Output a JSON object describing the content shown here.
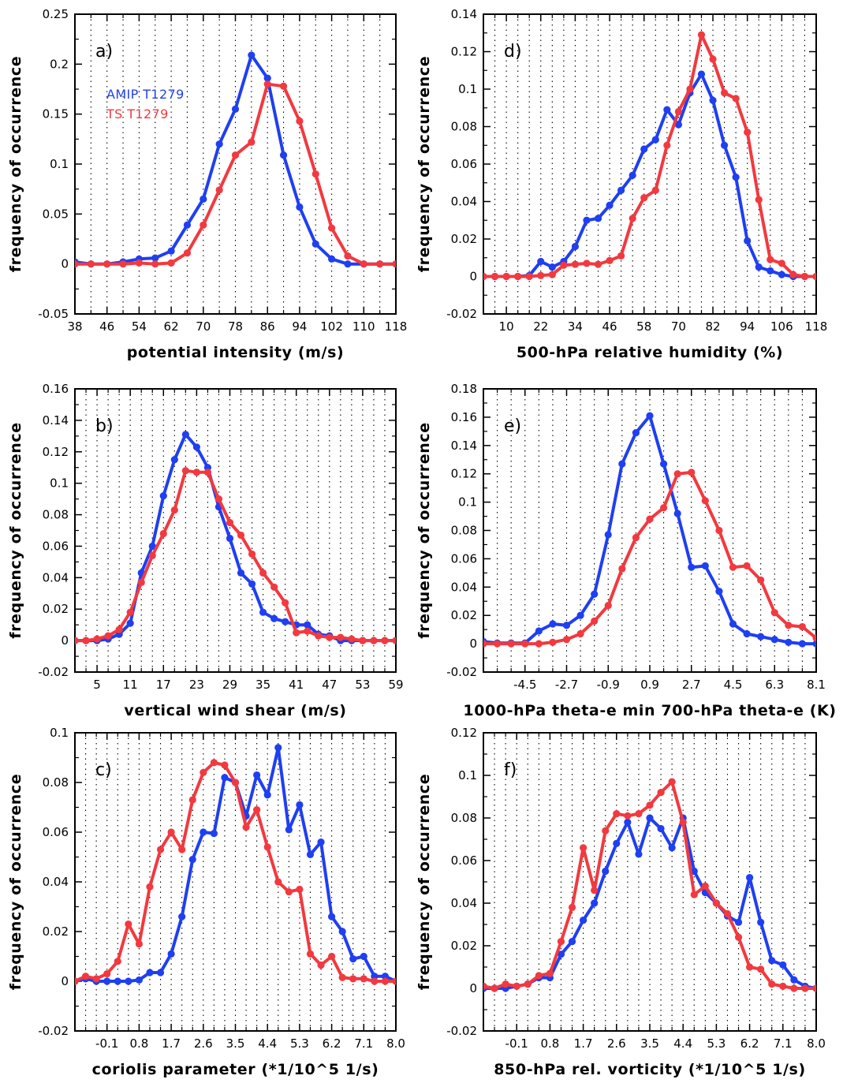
{
  "colors": {
    "AMIP": "#1f3ff2",
    "TS": "#f2393f"
  },
  "legend": [
    {
      "name": "AMIP T1279",
      "color": "#1f3ff2"
    },
    {
      "name": "TS T1279",
      "color": "#f2393f"
    }
  ],
  "chart_data": [
    {
      "panel": "a)",
      "type": "line",
      "xlabel": "potential intensity (m/s)",
      "ylabel": "frequency of occurrence",
      "xlim": [
        38,
        118
      ],
      "ylim": [
        -0.05,
        0.25
      ],
      "xticks": [
        "38",
        "42",
        "46",
        "50",
        "54",
        "58",
        "62",
        "66",
        "70",
        "74",
        "78",
        "82",
        "86",
        "90",
        "94",
        "98",
        "102",
        "106",
        "110",
        "114",
        "118"
      ],
      "xtick_labels": [
        "38",
        "46",
        "54",
        "62",
        "70",
        "78",
        "86",
        "94",
        "102",
        "110",
        "118"
      ],
      "yticks": [
        "-0.05",
        "0",
        "0.05",
        "0.1",
        "0.15",
        "0.2",
        "0.25"
      ],
      "grid": "dotted vertical",
      "legend_position": "top-left",
      "series": [
        {
          "name": "AMIP T1279",
          "x": [
            38,
            42,
            46,
            50,
            54,
            58,
            62,
            66,
            70,
            74,
            78,
            82,
            86,
            90,
            94,
            98,
            102,
            106,
            110,
            114,
            118
          ],
          "y": [
            0.002,
            0.0,
            0.0,
            0.002,
            0.005,
            0.006,
            0.013,
            0.039,
            0.065,
            0.12,
            0.155,
            0.209,
            0.186,
            0.109,
            0.057,
            0.02,
            0.005,
            0.0,
            0.0,
            0.0,
            0.0
          ]
        },
        {
          "name": "TS T1279",
          "x": [
            38,
            42,
            46,
            50,
            54,
            58,
            62,
            66,
            70,
            74,
            78,
            82,
            86,
            90,
            94,
            98,
            102,
            106,
            110,
            114,
            118
          ],
          "y": [
            0.0,
            0.0,
            0.0,
            0.0,
            0.001,
            0.0,
            0.001,
            0.011,
            0.039,
            0.074,
            0.109,
            0.122,
            0.18,
            0.178,
            0.143,
            0.09,
            0.036,
            0.008,
            0.0,
            0.0,
            0.0
          ]
        }
      ]
    },
    {
      "panel": "d)",
      "type": "line",
      "xlabel": "500-hPa relative humidity (%)",
      "ylabel": "frequency of occurrence",
      "xlim": [
        2,
        118
      ],
      "ylim": [
        -0.02,
        0.14
      ],
      "xtick_labels": [
        "10",
        "22",
        "34",
        "46",
        "58",
        "70",
        "82",
        "94",
        "106",
        "118"
      ],
      "xtick_values": [
        10,
        22,
        34,
        46,
        58,
        70,
        82,
        94,
        106,
        118
      ],
      "minor_x": [
        6,
        14,
        18,
        26,
        30,
        38,
        42,
        50,
        54,
        62,
        66,
        74,
        78,
        86,
        90,
        98,
        102,
        110,
        114
      ],
      "yticks": [
        "-0.02",
        "0",
        "0.02",
        "0.04",
        "0.06",
        "0.08",
        "0.1",
        "0.12",
        "0.14"
      ],
      "grid": "dotted vertical",
      "series": [
        {
          "name": "AMIP T1279",
          "x": [
            2,
            6,
            10,
            14,
            18,
            22,
            26,
            30,
            34,
            38,
            42,
            46,
            50,
            54,
            58,
            62,
            66,
            70,
            74,
            78,
            82,
            86,
            90,
            94,
            98,
            102,
            106,
            110,
            114,
            118
          ],
          "y": [
            0,
            0,
            0,
            0,
            0.0005,
            0.008,
            0.005,
            0.008,
            0.016,
            0.03,
            0.031,
            0.038,
            0.046,
            0.054,
            0.068,
            0.073,
            0.089,
            0.081,
            0.098,
            0.108,
            0.094,
            0.07,
            0.053,
            0.019,
            0.005,
            0.003,
            0.001,
            0.0,
            0.0,
            0.0
          ]
        },
        {
          "name": "TS T1279",
          "x": [
            2,
            6,
            10,
            14,
            18,
            22,
            26,
            30,
            34,
            38,
            42,
            46,
            50,
            54,
            58,
            62,
            66,
            70,
            74,
            78,
            82,
            86,
            90,
            94,
            98,
            102,
            106,
            110,
            114,
            118
          ],
          "y": [
            0,
            0,
            0,
            0,
            0,
            0.0005,
            0.001,
            0.006,
            0.0065,
            0.007,
            0.0065,
            0.0085,
            0.011,
            0.031,
            0.042,
            0.046,
            0.07,
            0.088,
            0.1,
            0.129,
            0.116,
            0.098,
            0.095,
            0.077,
            0.041,
            0.009,
            0.007,
            0.001,
            0.0,
            0.0
          ]
        }
      ]
    },
    {
      "panel": "b)",
      "type": "line",
      "xlabel": "vertical wind shear (m/s)",
      "ylabel": "frequency of occurrence",
      "xlim": [
        1,
        59
      ],
      "ylim": [
        -0.02,
        0.16
      ],
      "xtick_labels": [
        "5",
        "11",
        "17",
        "23",
        "29",
        "35",
        "41",
        "47",
        "53",
        "59"
      ],
      "xtick_values": [
        5,
        11,
        17,
        23,
        29,
        35,
        41,
        47,
        53,
        59
      ],
      "minor_x": [
        3,
        7,
        9,
        13,
        15,
        19,
        21,
        25,
        27,
        31,
        33,
        37,
        39,
        43,
        45,
        49,
        51,
        55,
        57
      ],
      "yticks": [
        "-0.02",
        "0",
        "0.02",
        "0.04",
        "0.06",
        "0.08",
        "0.1",
        "0.12",
        "0.14",
        "0.16"
      ],
      "grid": "dotted vertical",
      "series": [
        {
          "name": "AMIP T1279",
          "x": [
            1,
            3,
            5,
            7,
            9,
            11,
            13,
            15,
            17,
            19,
            21,
            23,
            25,
            27,
            29,
            31,
            33,
            35,
            37,
            39,
            41,
            43,
            45,
            47,
            49,
            51,
            53,
            55,
            57,
            59
          ],
          "y": [
            0,
            0,
            0,
            0.001,
            0.004,
            0.011,
            0.043,
            0.06,
            0.092,
            0.115,
            0.131,
            0.123,
            0.11,
            0.085,
            0.065,
            0.043,
            0.036,
            0.018,
            0.014,
            0.012,
            0.01,
            0.01,
            0.004,
            0.003,
            0.0,
            0.0,
            0.0,
            0.0,
            0.0,
            0.0
          ]
        },
        {
          "name": "TS T1279",
          "x": [
            1,
            3,
            5,
            7,
            9,
            11,
            13,
            15,
            17,
            19,
            21,
            23,
            25,
            27,
            29,
            31,
            33,
            35,
            37,
            39,
            41,
            43,
            45,
            47,
            49,
            51,
            53,
            55,
            57,
            59
          ],
          "y": [
            0,
            0,
            0.001,
            0.003,
            0.007,
            0.018,
            0.037,
            0.054,
            0.068,
            0.083,
            0.108,
            0.107,
            0.107,
            0.09,
            0.075,
            0.067,
            0.055,
            0.043,
            0.034,
            0.024,
            0.005,
            0.006,
            0.003,
            0.002,
            0.002,
            0.001,
            0.0,
            0.0,
            0.0,
            0.0
          ]
        }
      ]
    },
    {
      "panel": "e)",
      "type": "line",
      "xlabel": "1000-hPa theta-e min 700-hPa theta-e (K)",
      "ylabel": "frequency of occurrence",
      "xlim": [
        -6.3,
        8.1
      ],
      "ylim": [
        -0.02,
        0.18
      ],
      "xtick_labels": [
        "-4.5",
        "-2.7",
        "-0.9",
        "0.9",
        "2.7",
        "4.5",
        "6.3",
        "8.1"
      ],
      "xtick_values": [
        -4.5,
        -2.7,
        -0.9,
        0.9,
        2.7,
        4.5,
        6.3,
        8.1
      ],
      "minor_x": [
        -5.7,
        -5.1,
        -3.9,
        -3.3,
        -2.1,
        -1.5,
        -0.3,
        0.3,
        1.5,
        2.1,
        3.3,
        3.9,
        5.1,
        5.7,
        6.9,
        7.5
      ],
      "yticks": [
        "-0.02",
        "0",
        "0.02",
        "0.04",
        "0.06",
        "0.08",
        "0.1",
        "0.12",
        "0.14",
        "0.16",
        "0.18"
      ],
      "grid": "dotted vertical",
      "series": [
        {
          "name": "AMIP T1279",
          "x": [
            -6.3,
            -5.7,
            -5.1,
            -4.5,
            -3.9,
            -3.3,
            -2.7,
            -2.1,
            -1.5,
            -0.9,
            -0.3,
            0.3,
            0.9,
            1.5,
            2.1,
            2.7,
            3.3,
            3.9,
            4.5,
            5.1,
            5.7,
            6.3,
            6.9,
            7.5,
            8.1
          ],
          "y": [
            0.0015,
            0.0005,
            0.0005,
            0.0005,
            0.009,
            0.014,
            0.013,
            0.02,
            0.035,
            0.077,
            0.127,
            0.149,
            0.161,
            0.127,
            0.092,
            0.054,
            0.055,
            0.037,
            0.014,
            0.007,
            0.005,
            0.003,
            0.001,
            0.0,
            0.0
          ]
        },
        {
          "name": "TS T1279",
          "x": [
            -6.3,
            -5.7,
            -5.1,
            -4.5,
            -3.9,
            -3.3,
            -2.7,
            -2.1,
            -1.5,
            -0.9,
            -0.3,
            0.3,
            0.9,
            1.5,
            2.1,
            2.7,
            3.3,
            3.9,
            4.5,
            5.1,
            5.7,
            6.3,
            6.9,
            7.5,
            8.1
          ],
          "y": [
            0,
            0,
            0,
            0,
            0,
            0.001,
            0.003,
            0.007,
            0.016,
            0.027,
            0.053,
            0.075,
            0.088,
            0.096,
            0.12,
            0.121,
            0.101,
            0.08,
            0.054,
            0.055,
            0.045,
            0.022,
            0.013,
            0.012,
            0.004
          ]
        }
      ]
    },
    {
      "panel": "c)",
      "type": "line",
      "xlabel": "coriolis parameter (*1/10^5 1/s)",
      "ylabel": "frequency of occurrence",
      "xlim": [
        -1.0,
        8.0
      ],
      "ylim": [
        -0.02,
        0.1
      ],
      "xtick_labels": [
        "-0.1",
        "0.8",
        "1.7",
        "2.6",
        "3.5",
        "4.4",
        "5.3",
        "6.2",
        "7.1",
        "8.0"
      ],
      "xtick_values": [
        -0.1,
        0.8,
        1.7,
        2.6,
        3.5,
        4.4,
        5.3,
        6.2,
        7.1,
        8.0
      ],
      "minor_x": [
        -0.7,
        -0.4,
        0.2,
        0.5,
        1.1,
        1.4,
        2.0,
        2.3,
        2.9,
        3.2,
        3.8,
        4.1,
        4.7,
        5.0,
        5.6,
        5.9,
        6.5,
        6.8,
        7.4,
        7.7
      ],
      "yticks": [
        "-0.02",
        "0",
        "0.02",
        "0.04",
        "0.06",
        "0.08",
        "0.1"
      ],
      "grid": "dotted vertical",
      "series": [
        {
          "name": "AMIP T1279",
          "x": [
            -1.0,
            -0.7,
            -0.4,
            -0.1,
            0.2,
            0.5,
            0.8,
            1.1,
            1.4,
            1.7,
            2.0,
            2.3,
            2.6,
            2.9,
            3.2,
            3.5,
            3.8,
            4.1,
            4.4,
            4.7,
            5.0,
            5.3,
            5.6,
            5.9,
            6.2,
            6.5,
            6.8,
            7.1,
            7.4,
            7.7,
            8.0
          ],
          "y": [
            0,
            0.001,
            0.0,
            0.0,
            0.0,
            0.0,
            0.0005,
            0.0035,
            0.0035,
            0.011,
            0.026,
            0.049,
            0.06,
            0.0595,
            0.082,
            0.08,
            0.0665,
            0.083,
            0.075,
            0.094,
            0.061,
            0.071,
            0.051,
            0.056,
            0.026,
            0.02,
            0.009,
            0.01,
            0.002,
            0.002,
            0.0
          ]
        },
        {
          "name": "TS T1279",
          "x": [
            -1.0,
            -0.7,
            -0.4,
            -0.1,
            0.2,
            0.5,
            0.8,
            1.1,
            1.4,
            1.7,
            2.0,
            2.3,
            2.6,
            2.9,
            3.2,
            3.5,
            3.8,
            4.1,
            4.4,
            4.7,
            5.0,
            5.3,
            5.6,
            5.9,
            6.2,
            6.5,
            6.8,
            7.1,
            7.4,
            7.7,
            8.0
          ],
          "y": [
            0,
            0.002,
            0.001,
            0.003,
            0.008,
            0.023,
            0.015,
            0.038,
            0.053,
            0.06,
            0.053,
            0.073,
            0.084,
            0.088,
            0.087,
            0.08,
            0.062,
            0.069,
            0.054,
            0.04,
            0.036,
            0.037,
            0.011,
            0.0065,
            0.01,
            0.0015,
            0.001,
            0.001,
            0.0,
            0.0,
            0.0
          ]
        }
      ]
    },
    {
      "panel": "f)",
      "type": "line",
      "xlabel": "850-hPa rel. vorticity (*1/10^5 1/s)",
      "ylabel": "frequency of occurrence",
      "xlim": [
        -1.0,
        8.0
      ],
      "ylim": [
        -0.02,
        0.12
      ],
      "xtick_labels": [
        "-0.1",
        "0.8",
        "1.7",
        "2.6",
        "3.5",
        "4.4",
        "5.3",
        "6.2",
        "7.1",
        "8.0"
      ],
      "xtick_values": [
        -0.1,
        0.8,
        1.7,
        2.6,
        3.5,
        4.4,
        5.3,
        6.2,
        7.1,
        8.0
      ],
      "minor_x": [
        -0.7,
        -0.4,
        0.2,
        0.5,
        1.1,
        1.4,
        2.0,
        2.3,
        2.9,
        3.2,
        3.8,
        4.1,
        4.7,
        5.0,
        5.6,
        5.9,
        6.5,
        6.8,
        7.4,
        7.7
      ],
      "yticks": [
        "-0.02",
        "0",
        "0.02",
        "0.04",
        "0.06",
        "0.08",
        "0.1",
        "0.12"
      ],
      "grid": "dotted vertical",
      "series": [
        {
          "name": "AMIP T1279",
          "x": [
            -1.0,
            -0.7,
            -0.4,
            -0.1,
            0.2,
            0.5,
            0.8,
            1.1,
            1.4,
            1.7,
            2.0,
            2.3,
            2.6,
            2.9,
            3.2,
            3.5,
            3.8,
            4.1,
            4.4,
            4.7,
            5.0,
            5.3,
            5.6,
            5.9,
            6.2,
            6.5,
            6.8,
            7.1,
            7.4,
            7.7,
            8.0
          ],
          "y": [
            0,
            0.0,
            0.0,
            0.001,
            0.002,
            0.005,
            0.005,
            0.016,
            0.022,
            0.032,
            0.04,
            0.055,
            0.068,
            0.078,
            0.063,
            0.08,
            0.075,
            0.066,
            0.08,
            0.055,
            0.045,
            0.04,
            0.034,
            0.031,
            0.052,
            0.031,
            0.013,
            0.011,
            0.004,
            0.001,
            0.0
          ]
        },
        {
          "name": "TS T1279",
          "x": [
            -1.0,
            -0.7,
            -0.4,
            -0.1,
            0.2,
            0.5,
            0.8,
            1.1,
            1.4,
            1.7,
            2.0,
            2.3,
            2.6,
            2.9,
            3.2,
            3.5,
            3.8,
            4.1,
            4.4,
            4.7,
            5.0,
            5.3,
            5.6,
            5.9,
            6.2,
            6.5,
            6.8,
            7.1,
            7.4,
            7.7,
            8.0
          ],
          "y": [
            0.001,
            0.0,
            0.002,
            0.001,
            0.002,
            0.006,
            0.007,
            0.022,
            0.038,
            0.066,
            0.046,
            0.074,
            0.082,
            0.081,
            0.082,
            0.086,
            0.092,
            0.097,
            0.078,
            0.044,
            0.048,
            0.04,
            0.035,
            0.024,
            0.01,
            0.009,
            0.002,
            0.001,
            0.0,
            0.0,
            0.0
          ]
        }
      ]
    }
  ]
}
